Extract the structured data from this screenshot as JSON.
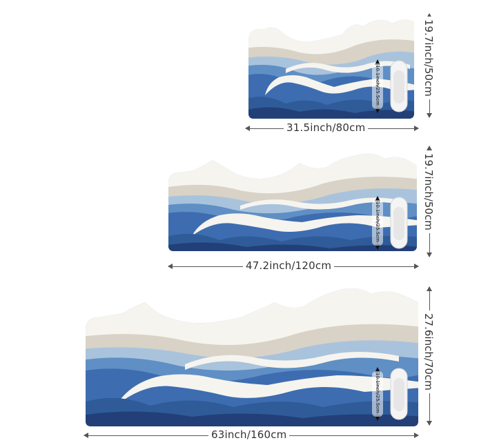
{
  "rugs": [
    {
      "id": "small",
      "width_label": "31.5inch/80cm",
      "height_label": "19.7inch/50cm",
      "shoe_label": "10.1inch/25.5cm"
    },
    {
      "id": "medium",
      "width_label": "47.2inch/120cm",
      "height_label": "19.7inch/50cm",
      "shoe_label": "10.1inch/25.5cm"
    },
    {
      "id": "large",
      "width_label": "63inch/160cm",
      "height_label": "27.6inch/70cm",
      "shoe_label": "10.1inch/25.5cm"
    }
  ],
  "colors": {
    "white_band": "#f6f4ef",
    "beige_band": "#d9d2c6",
    "light_blue": "#a9c3dd",
    "mid_blue": "#5f8fc4",
    "deep_blue": "#2f5b99",
    "navy": "#223f78",
    "edge": "#8fb3db"
  },
  "icons": [
    "slipper-pair-icon",
    "double-arrow-icon"
  ]
}
